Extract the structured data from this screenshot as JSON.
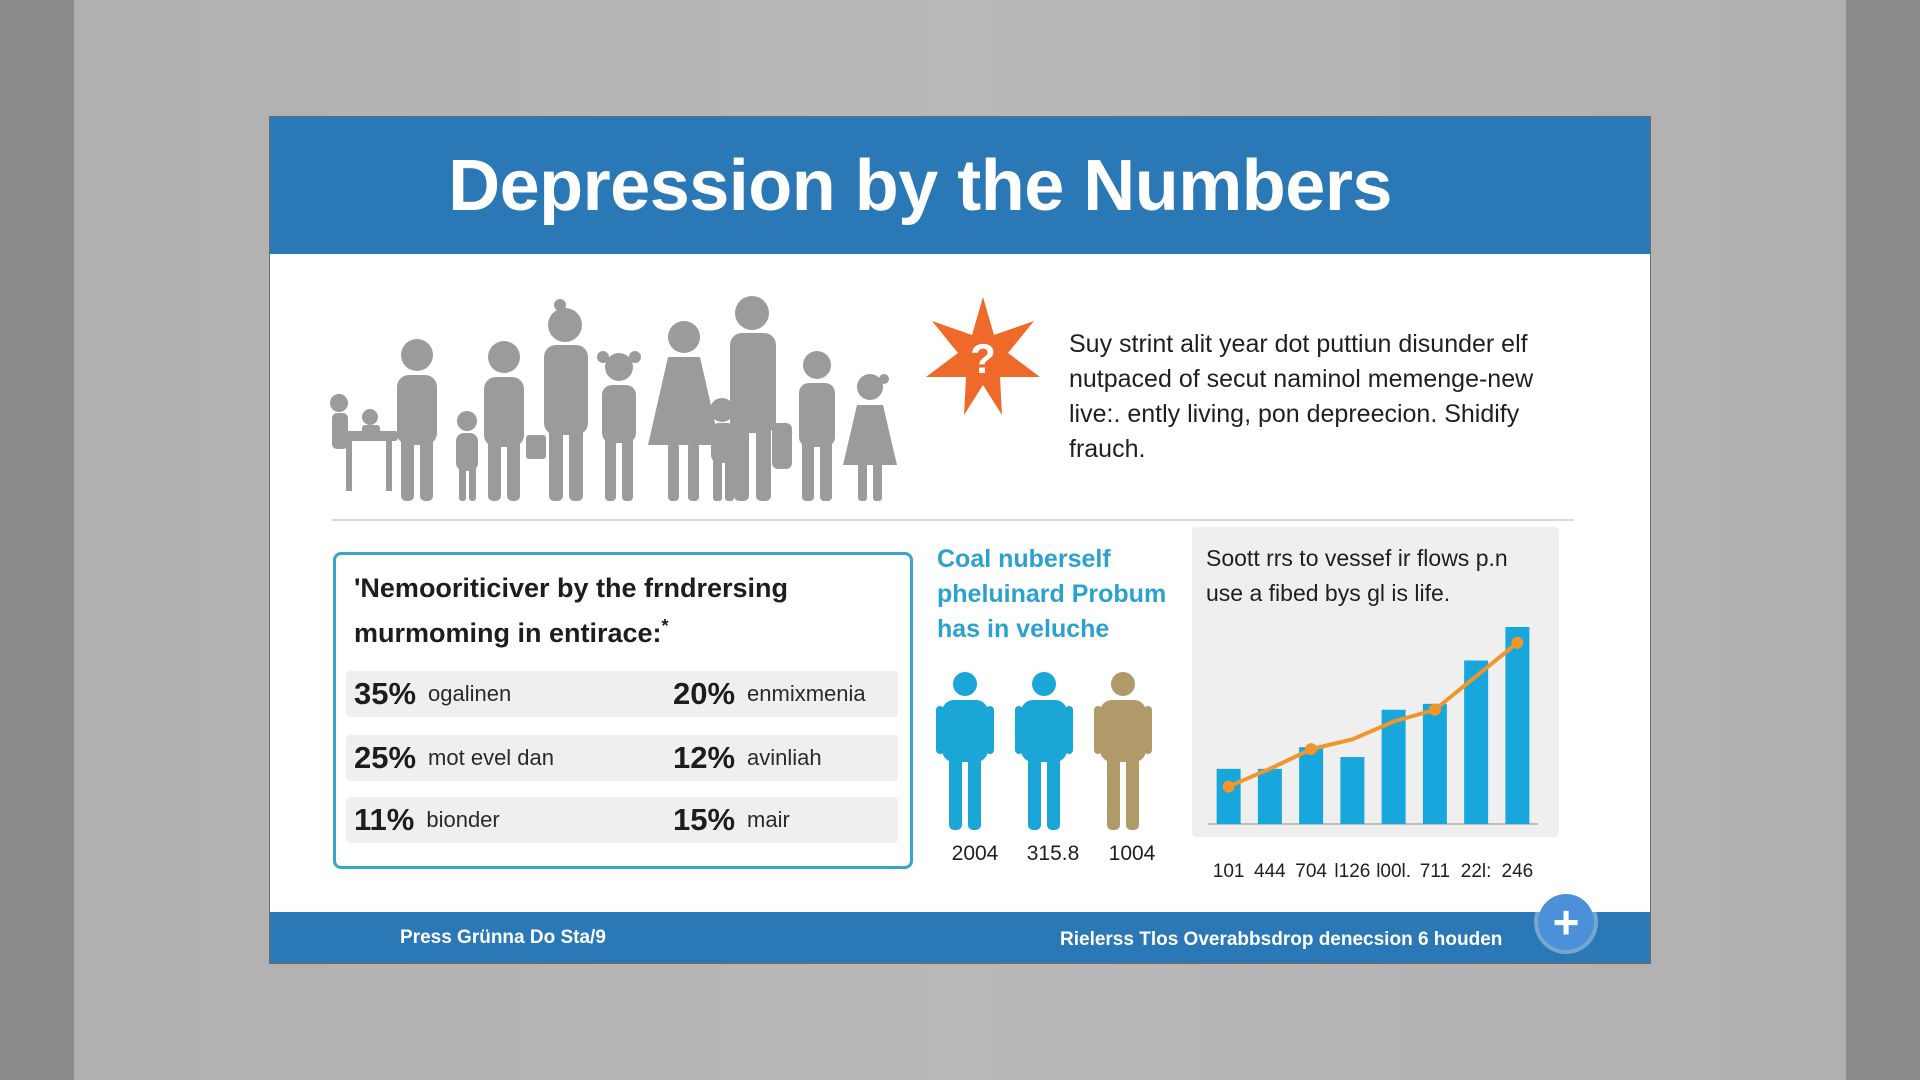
{
  "slide": {
    "title": "Depression by the Numbers",
    "intro": "Suy strint alit year dot puttiun disunder elf nutpaced of secut naminol memenge-new live:. ently living, pon depreecion. Shidify frauch.",
    "burst_symbol": "?"
  },
  "stats": {
    "heading": "'Nemooriticiver by the frndrersing murmoming in entirace:",
    "heading_mark": "*",
    "rows": [
      {
        "left": {
          "pct": "35%",
          "label": "ogalinen"
        },
        "right": {
          "pct": "20%",
          "label": "enmixmenia"
        }
      },
      {
        "left": {
          "pct": "25%",
          "label": "mot evel dan"
        },
        "right": {
          "pct": "12%",
          "label": "avinliah"
        }
      },
      {
        "left": {
          "pct": "11%",
          "label": "bionder"
        },
        "right": {
          "pct": "15%",
          "label": "mair"
        }
      }
    ]
  },
  "people_panel": {
    "heading": "Coal nuberself pheluinard Probum has in veluche",
    "figures": [
      {
        "label": "2004",
        "color": "#1aa6d6"
      },
      {
        "label": "315.8",
        "color": "#1aa6d6"
      },
      {
        "label": "1004",
        "color": "#b09a6a"
      }
    ]
  },
  "chart_data": {
    "type": "bar",
    "caption": "Soott rrs to vessef ir flows p.n use a fibed bys gl is life.",
    "categories": [
      "101",
      "444",
      "704",
      "l126",
      "l00l.",
      "711",
      "22l:",
      "246"
    ],
    "tick_labels": [
      "101",
      "444",
      "704",
      "l126",
      "l00l.",
      "711",
      "22l:",
      "246"
    ],
    "bars": [
      0.28,
      0.28,
      0.39,
      0.34,
      0.58,
      0.61,
      0.83,
      1.0
    ],
    "trend": [
      0.19,
      0.28,
      0.38,
      0.43,
      0.52,
      0.58,
      0.75,
      0.92
    ],
    "bar_color": "#17a7dc",
    "line_color": "#f0962a",
    "ylim": [
      0,
      1
    ]
  },
  "footer": {
    "left": "Press Grünna Do Sta/9",
    "right": "Rielerss Tlos Overabbsdrop denecsion 6 houden",
    "plus": "+"
  },
  "colors": {
    "header": "#2b78b6",
    "accent": "#3aa6c7",
    "burst": "#ef6a2a",
    "silhouettes": "#9a9a9a"
  }
}
